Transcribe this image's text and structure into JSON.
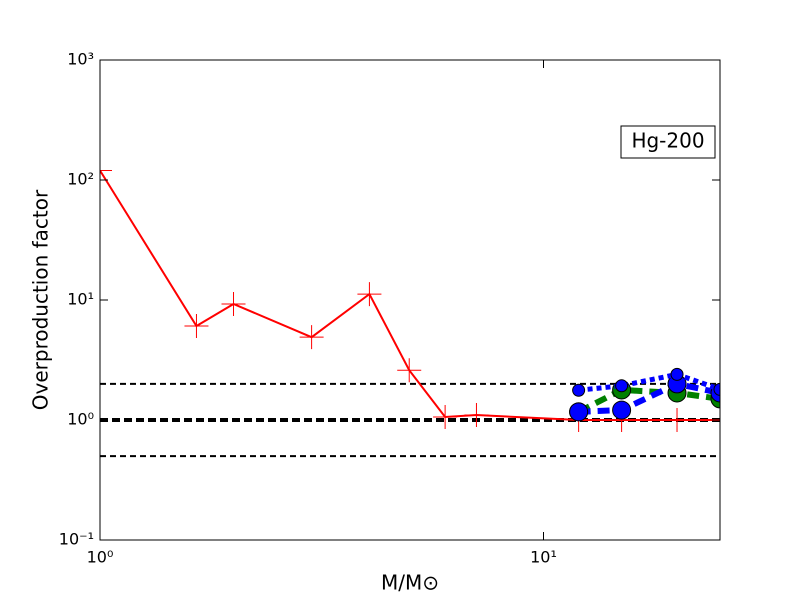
{
  "chart_data": {
    "type": "line",
    "xlabel": "M/M⊙",
    "ylabel": "Overproduction factor",
    "annotation": "Hg-200",
    "xscale": "log",
    "yscale": "log",
    "xlim": [
      1,
      25
    ],
    "ylim": [
      0.1,
      1000
    ],
    "xticks": [
      {
        "value": 1,
        "label": "10⁰"
      },
      {
        "value": 10,
        "label": "10¹"
      }
    ],
    "yticks": [
      {
        "value": 0.1,
        "label": "10⁻¹"
      },
      {
        "value": 1,
        "label": "10⁰"
      },
      {
        "value": 10,
        "label": "10¹"
      },
      {
        "value": 100,
        "label": "10²"
      },
      {
        "value": 1000,
        "label": "10³"
      }
    ],
    "hlines": [
      {
        "y": 2,
        "style": "dashed"
      },
      {
        "y": 1,
        "style": "bold-dashed"
      },
      {
        "y": 0.5,
        "style": "dashed"
      }
    ],
    "series": [
      {
        "color": "#ff0000",
        "line": "solid",
        "marker": "plus",
        "x": [
          1,
          1.65,
          2,
          3,
          4.05,
          4.98,
          6,
          7.06,
          12,
          15,
          20,
          25
        ],
        "values": [
          120,
          6.07,
          9.26,
          4.9,
          11.2,
          2.6,
          1.06,
          1.1,
          1.0,
          1.0,
          1.0,
          1.0
        ]
      },
      {
        "color": "#008000",
        "line": "dashed",
        "marker": "circle-large",
        "x": [
          12,
          15,
          20,
          25
        ],
        "values": [
          1.17,
          1.78,
          1.68,
          1.5
        ]
      },
      {
        "color": "#0000ff",
        "line": "dashed",
        "marker": "circle-large",
        "x": [
          12,
          15,
          20,
          25
        ],
        "values": [
          1.17,
          1.21,
          2.0,
          1.68
        ]
      },
      {
        "color": "#0000ff",
        "line": "dotted",
        "marker": "circle-small",
        "x": [
          12,
          15,
          20,
          25
        ],
        "values": [
          1.77,
          1.93,
          2.4,
          1.8
        ]
      }
    ]
  }
}
